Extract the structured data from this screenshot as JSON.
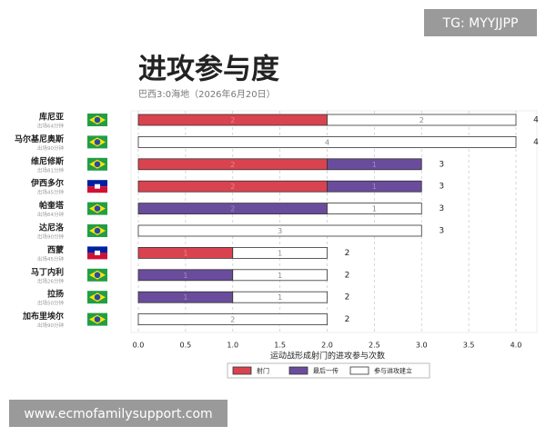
{
  "chart_data": {
    "type": "barh-stacked",
    "title": "进攻参与度",
    "subtitle": "巴西3:0海地（2026年6月20日）",
    "xlabel": "运动战形成射门的进攻参与次数",
    "categories": [
      "库尼亚",
      "马尔基尼奥斯",
      "维尼修斯",
      "伊西多尔",
      "帕奎塔",
      "达尼洛",
      "西蒙",
      "马丁内利",
      "拉扬",
      "加布里埃尔"
    ],
    "minutes": [
      "出场64分钟",
      "出场90分钟",
      "出场81分钟",
      "出场45分钟",
      "出场64分钟",
      "出场90分钟",
      "出场45分钟",
      "出场26分钟",
      "出场50分钟",
      "出场90分钟"
    ],
    "flags": [
      "BR",
      "BR",
      "BR",
      "HT",
      "BR",
      "BR",
      "HT",
      "BR",
      "BR",
      "BR"
    ],
    "series": [
      {
        "name": "射门",
        "color": "#d9434f",
        "values": [
          2,
          0,
          2,
          2,
          0,
          0,
          1,
          0,
          0,
          0
        ]
      },
      {
        "name": "最后一传",
        "color": "#6a4c9c",
        "values": [
          0,
          0,
          1,
          1,
          2,
          0,
          0,
          1,
          1,
          0
        ]
      },
      {
        "name": "参与进攻建立",
        "color": "#ffffff",
        "values": [
          2,
          4,
          0,
          0,
          1,
          3,
          1,
          1,
          1,
          2
        ]
      }
    ],
    "totals": [
      4,
      4,
      3,
      3,
      3,
      3,
      2,
      2,
      2,
      2
    ],
    "xlim": [
      0,
      4
    ],
    "xticks": [
      {
        "value": 0,
        "label": "0.0"
      },
      {
        "value": 0.5,
        "label": "0.5"
      },
      {
        "value": 1,
        "label": "1.0"
      },
      {
        "value": 1.5,
        "label": "1.5"
      },
      {
        "value": 2,
        "label": "2.0"
      },
      {
        "value": 2.5,
        "label": "2.5"
      },
      {
        "value": 3,
        "label": "3.0"
      },
      {
        "value": 3.5,
        "label": "3.5"
      },
      {
        "value": 4,
        "label": "4.0"
      }
    ],
    "grid": true
  },
  "watermarks": [
    "TG: MYYJJPP",
    "www.ecmofamilysupport.com"
  ]
}
